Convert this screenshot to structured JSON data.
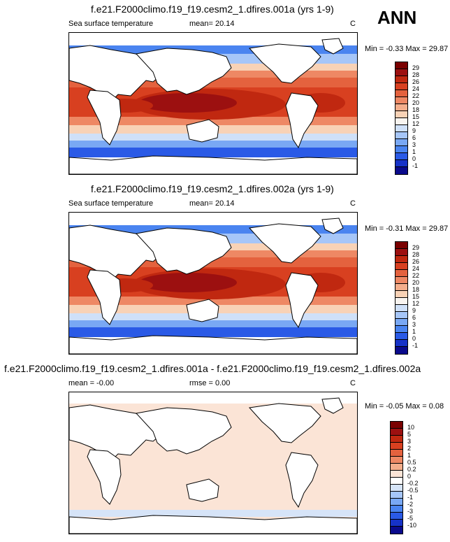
{
  "season": "ANN",
  "colors": {
    "sst": [
      "#0a0a8c",
      "#1632c8",
      "#2a5ae6",
      "#4a84f0",
      "#79a8f4",
      "#a6c6f8",
      "#cfe0f8",
      "#f8f4f0",
      "#f8d2b6",
      "#f4ae8c",
      "#ee8864",
      "#e4623e",
      "#d84020",
      "#c02810",
      "#9c1010",
      "#7a0000"
    ],
    "diff": [
      "#0a0a8c",
      "#1632c8",
      "#2a5ae6",
      "#4a84f0",
      "#79a8f4",
      "#a6c6f8",
      "#d6e4f8",
      "#ffffff",
      "#fbe4d6",
      "#f4ae8c",
      "#ee8864",
      "#e4623e",
      "#d84020",
      "#c02810",
      "#9c1010",
      "#7a0000"
    ]
  },
  "chart_data": [
    {
      "type": "heatmap",
      "title": "f.e21.F2000climo.f19_f19.cesm2_1.dfires.001a (yrs 1-9)",
      "left_label": "Sea surface temperature",
      "center_label": "mean=  20.14",
      "units": "C",
      "min_label": "Min = ",
      "min_value": "-0.33",
      "max_label": "Max = ",
      "max_value": "29.87",
      "levels": [
        "29",
        "28",
        "26",
        "24",
        "22",
        "20",
        "18",
        "15",
        "12",
        "9",
        "6",
        "3",
        "1",
        "0",
        "-1"
      ]
    },
    {
      "type": "heatmap",
      "title": "f.e21.F2000climo.f19_f19.cesm2_1.dfires.002a (yrs 1-9)",
      "left_label": "Sea surface temperature",
      "center_label": "mean=  20.14",
      "units": "C",
      "min_label": "Min = ",
      "min_value": "-0.31",
      "max_label": "Max = ",
      "max_value": "29.87",
      "levels": [
        "29",
        "28",
        "26",
        "24",
        "22",
        "20",
        "18",
        "15",
        "12",
        "9",
        "6",
        "3",
        "1",
        "0",
        "-1"
      ]
    },
    {
      "type": "heatmap",
      "title": "f.e21.F2000climo.f19_f19.cesm2_1.dfires.001a - f.e21.F2000climo.f19_f19.cesm2_1.dfires.002a",
      "left_label": "mean =  -0.00",
      "center_label": "rmse =   0.00",
      "units": "C",
      "min_label": "Min = ",
      "min_value": "-0.05",
      "max_label": "Max = ",
      "max_value": "0.08",
      "levels": [
        "10",
        "5",
        "3",
        "2",
        "1",
        "0.5",
        "0.2",
        "0",
        "-0.2",
        "-0.5",
        "-1",
        "-2",
        "-3",
        "-5",
        "-10"
      ]
    }
  ]
}
